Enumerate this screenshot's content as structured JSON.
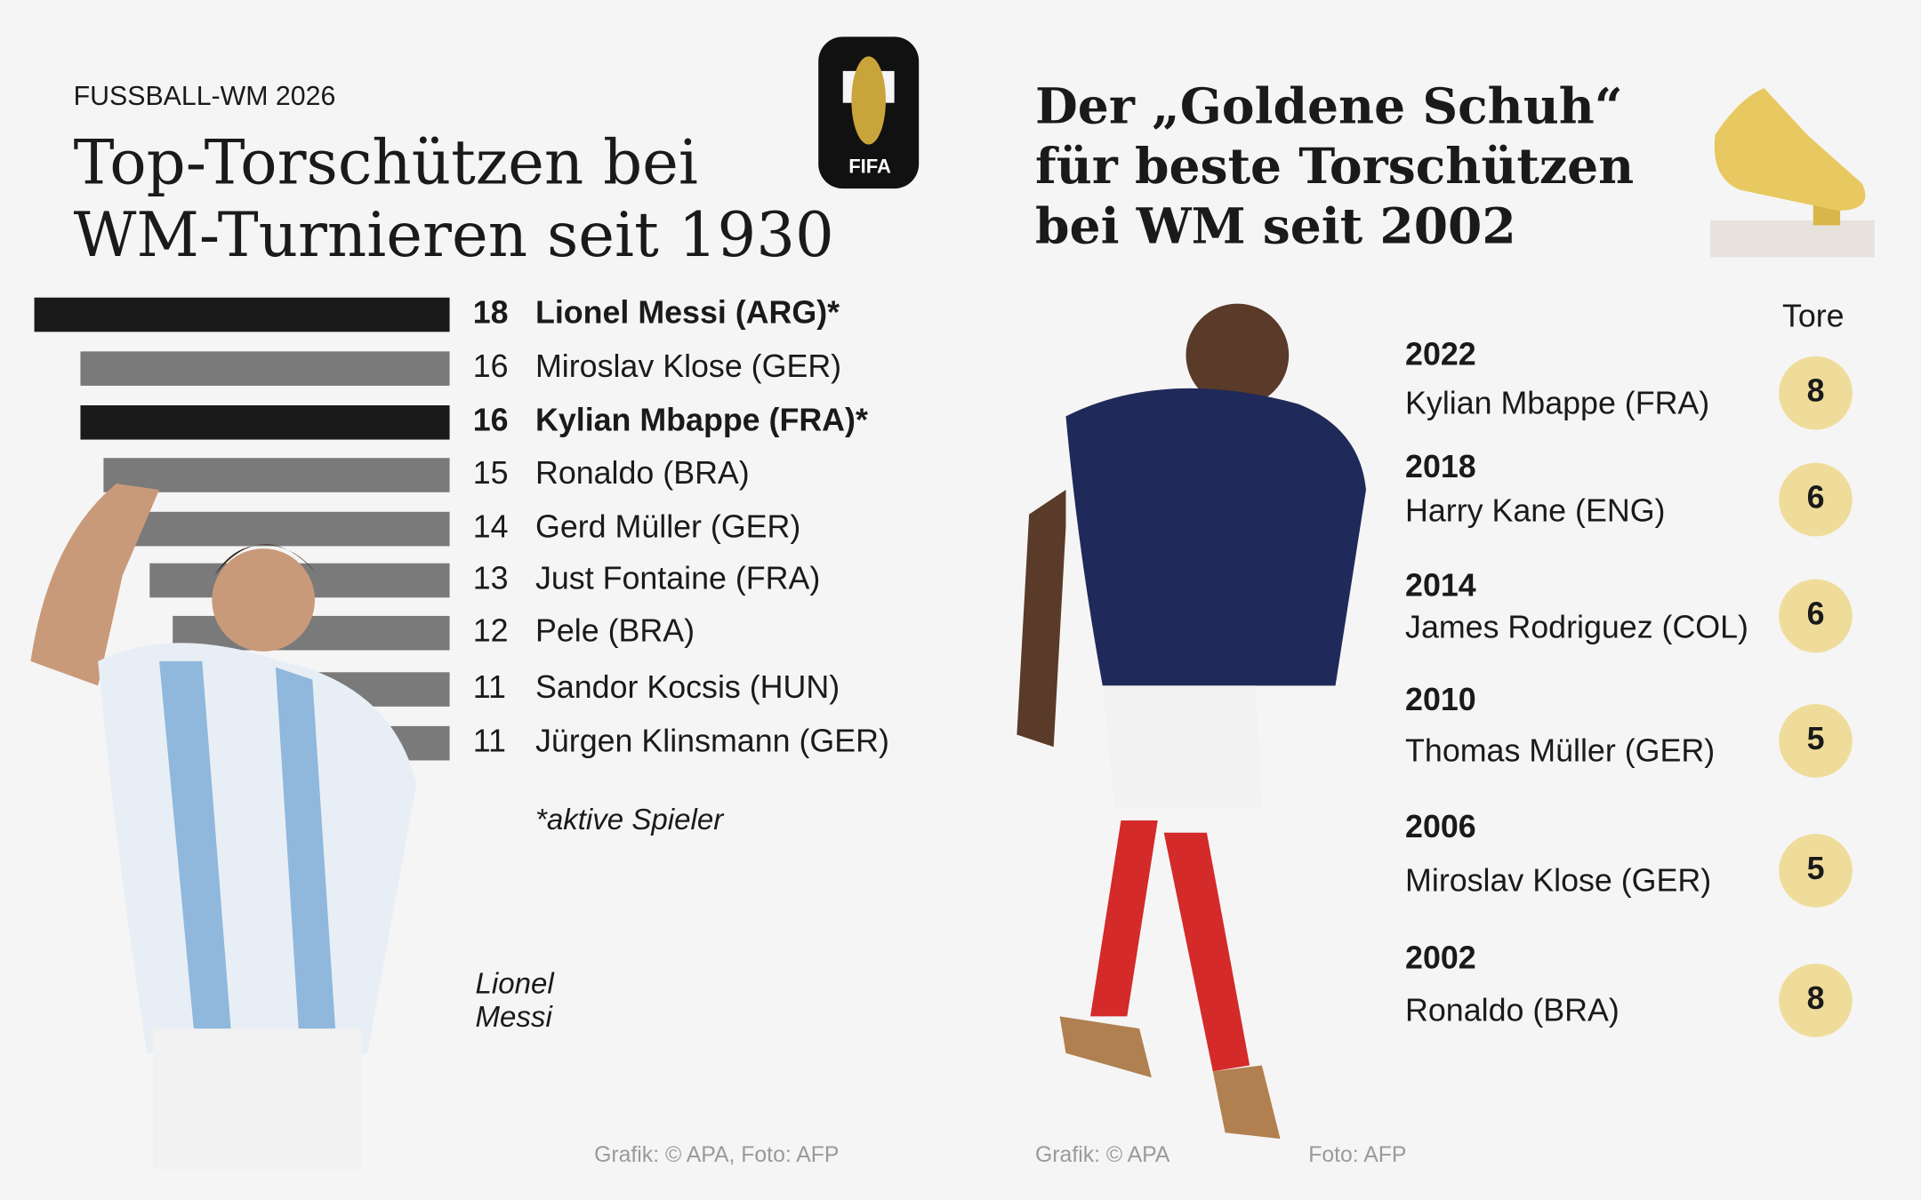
{
  "header": {
    "kicker": "FUSSBALL-WM 2026",
    "title_lines": [
      "Top-Torschützen bei",
      "WM-Turnieren seit 1930"
    ],
    "logo_text": "FIFA"
  },
  "chart_data": {
    "type": "bar",
    "orientation": "horizontal",
    "categories": [
      "Lionel Messi (ARG)*",
      "Miroslav Klose (GER)",
      "Kylian Mbappe (FRA)*",
      "Ronaldo (BRA)",
      "Gerd Müller (GER)",
      "Just Fontaine (FRA)",
      "Pele (BRA)",
      "Sandor Kocsis (HUN)",
      "Jürgen Klinsmann (GER)"
    ],
    "values": [
      18,
      16,
      16,
      15,
      14,
      13,
      12,
      11,
      11
    ],
    "colors": [
      "#1a1a1a",
      "#7a7a7a",
      "#1a1a1a",
      "#7a7a7a",
      "#7a7a7a",
      "#7a7a7a",
      "#7a7a7a",
      "#7a7a7a",
      "#7a7a7a"
    ],
    "footnote": "*aktive Spieler"
  },
  "photo_caption": [
    "Lionel",
    "Messi"
  ],
  "golden_shoe": {
    "title_lines": [
      "Der „Goldene Schuh“",
      "für beste Torschützen",
      "bei WM seit 2002"
    ],
    "column_header": "Tore",
    "rows": [
      {
        "year": "2022",
        "player": "Kylian Mbappe (FRA)",
        "goals": 8
      },
      {
        "year": "2018",
        "player": "Harry Kane (ENG)",
        "goals": 6
      },
      {
        "year": "2014",
        "player": "James Rodriguez (COL)",
        "goals": 6
      },
      {
        "year": "2010",
        "player": "Thomas Müller (GER)",
        "goals": 5
      },
      {
        "year": "2006",
        "player": "Miroslav Klose (GER)",
        "goals": 5
      },
      {
        "year": "2002",
        "player": "Ronaldo (BRA)",
        "goals": 8
      }
    ]
  },
  "credits": [
    "Grafik: © APA, Foto: AFP",
    "Grafik: © APA",
    "Foto: AFP"
  ]
}
